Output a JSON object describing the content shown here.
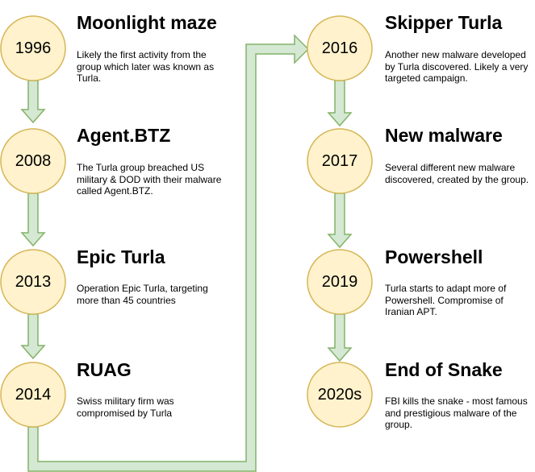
{
  "colors": {
    "circle_fill": "#fff2cc",
    "circle_stroke": "#d6b656",
    "arrow_fill": "#d5e8d4",
    "arrow_stroke": "#82b366"
  },
  "events": [
    {
      "year": "1996",
      "title": "Moonlight maze",
      "description": "Likely the first activity from the\ngroup which later was known as\nTurla."
    },
    {
      "year": "2008",
      "title": "Agent.BTZ",
      "description": "The Turla group breached US\nmilitary & DOD with their malware\ncalled Agent.BTZ."
    },
    {
      "year": "2013",
      "title": "Epic Turla",
      "description": "Operation Epic Turla, targeting\nmore than 45 countries"
    },
    {
      "year": "2014",
      "title": "RUAG",
      "description": "Swiss military firm was\ncompromised by Turla"
    },
    {
      "year": "2016",
      "title": "Skipper Turla",
      "description": "Another new malware developed\nby Turla discovered. Likely a very\ntargeted campaign."
    },
    {
      "year": "2017",
      "title": "New malware",
      "description": "Several different new malware\ndiscovered, created by the group."
    },
    {
      "year": "2019",
      "title": "Powershell",
      "description": "Turla starts to adapt more of\nPowershell. Compromise of\nIranian APT."
    },
    {
      "year": "2020s",
      "title": "End of Snake",
      "description": "FBI kills the snake - most famous\nand prestigious malware of the\ngroup."
    }
  ]
}
